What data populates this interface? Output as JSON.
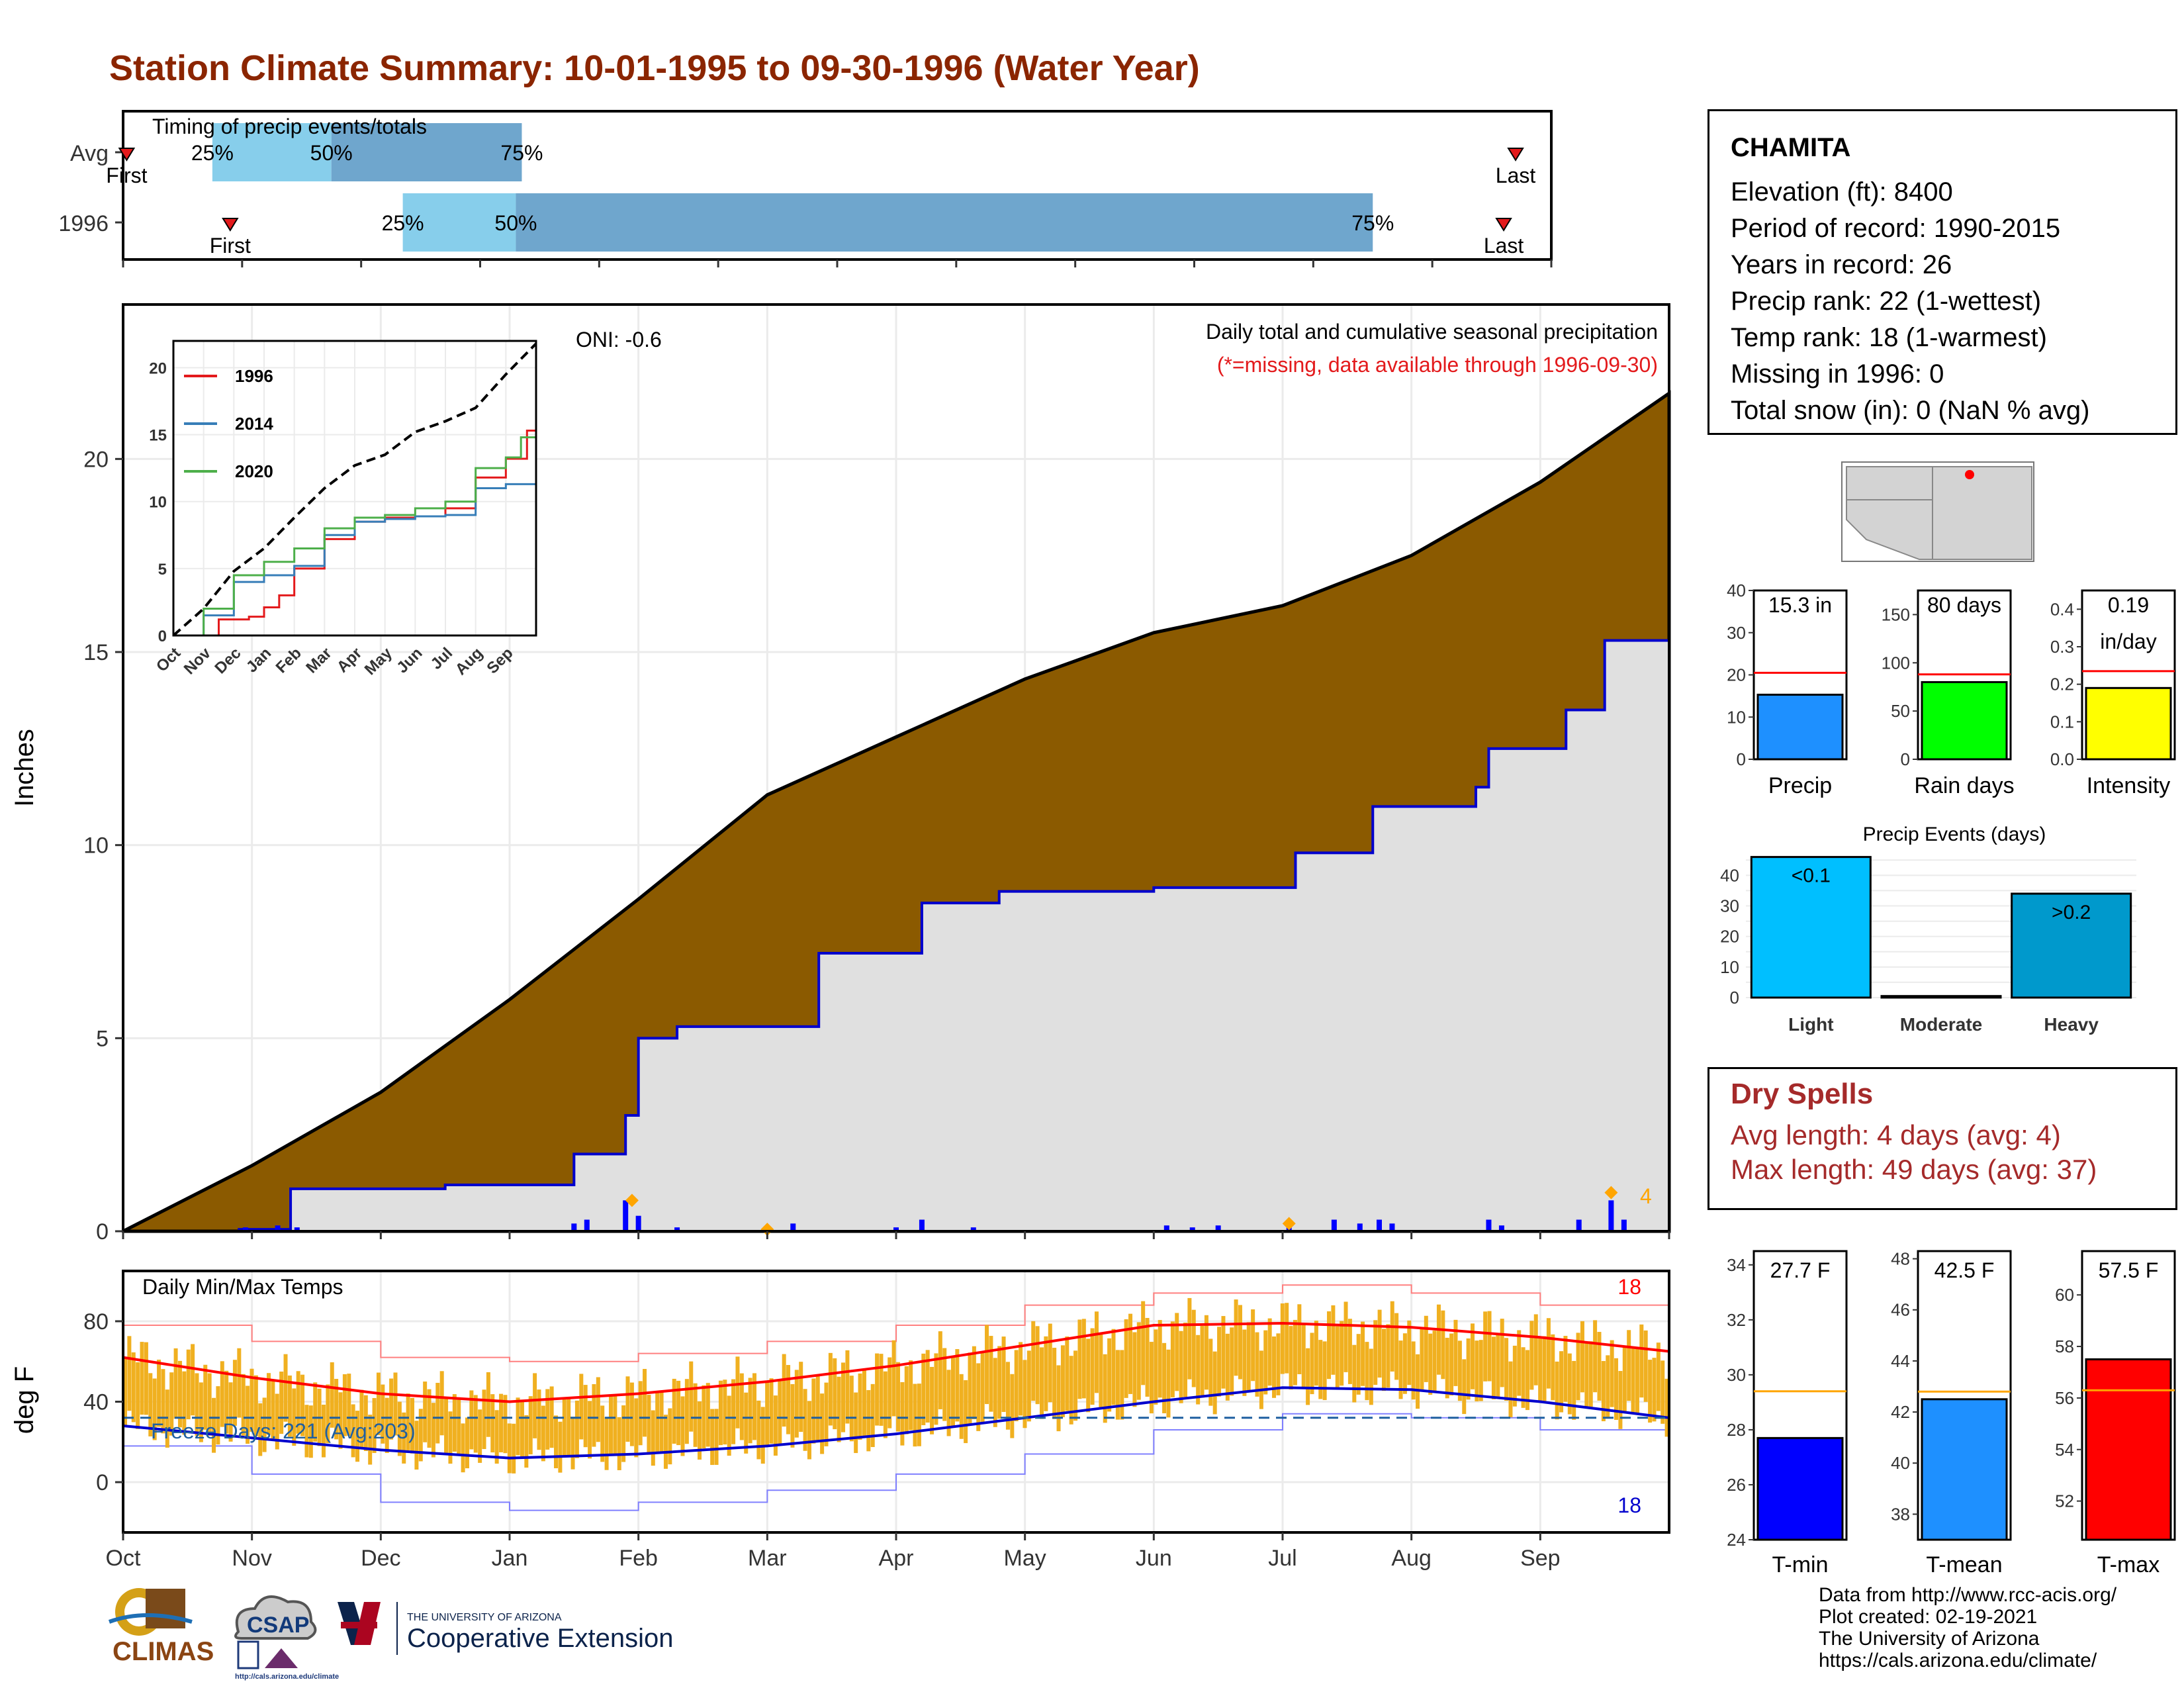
{
  "title": "Station Climate Summary: 10-01-1995 to 09-30-1996 (Water Year)",
  "station": {
    "name": "CHAMITA",
    "lines": [
      "Elevation (ft): 8400",
      "Period of record: 1990-2015",
      "Years in record: 26",
      "Precip rank: 22 (1-wettest)",
      "Temp rank: 18 (1-warmest)",
      "Missing in 1996: 0",
      "Total snow (in): 0 (NaN % avg)"
    ]
  },
  "timing": {
    "title": "Timing of precip events/totals",
    "rows": [
      {
        "label": "Avg",
        "first_label": "First",
        "last_label": "Last",
        "first": 0.03,
        "p25": 0.75,
        "p50": 1.75,
        "p75": 3.35,
        "last": 11.7
      },
      {
        "label": "1996",
        "first_label": "First",
        "last_label": "Last",
        "first": 0.9,
        "p25": 2.35,
        "p50": 3.3,
        "p75": 10.5,
        "last": 11.6
      }
    ],
    "pct_labels": [
      "25%",
      "50%",
      "75%"
    ],
    "colors": {
      "light": "#87ceeb",
      "dark": "#6fa6cd",
      "marker": "#e31a1c"
    }
  },
  "months": [
    "Oct",
    "Nov",
    "Dec",
    "Jan",
    "Feb",
    "Mar",
    "Apr",
    "May",
    "Jun",
    "Jul",
    "Aug",
    "Sep"
  ],
  "precip": {
    "ylabel": "Inches",
    "yticks": [
      0,
      5,
      10,
      15,
      20
    ],
    "annotation_title": "Daily total and cumulative seasonal precipitation",
    "annotation_missing": "(*=missing, data available through 1996-09-30)",
    "oni": "ONI: -0.6",
    "extreme_count": "4",
    "colors": {
      "avg_fill": "#8b5a00",
      "obs_fill": "#e0e0e0",
      "obs_line": "#0000cd",
      "bars": "#0000ff",
      "extreme": "#ffa500",
      "missing_note": "#e31a1c"
    },
    "avg_cumulative": {
      "month": [
        0,
        1,
        2,
        3,
        4,
        5,
        6,
        7,
        8,
        9,
        10,
        11,
        12
      ],
      "inches": [
        0,
        1.7,
        3.6,
        6.0,
        8.6,
        11.3,
        12.8,
        14.3,
        15.5,
        16.2,
        17.5,
        19.4,
        21.7
      ]
    },
    "obs_cumulative": {
      "month": [
        0,
        0.9,
        1.3,
        2.5,
        3.5,
        3.9,
        4.0,
        4.3,
        5.4,
        6.2,
        6.8,
        8.0,
        9.0,
        9.1,
        9.7,
        10.5,
        10.6,
        11.2,
        11.5,
        12.0
      ],
      "inches": [
        0,
        0.05,
        1.1,
        1.2,
        2.0,
        3.0,
        5.0,
        5.3,
        7.2,
        8.5,
        8.8,
        8.9,
        8.9,
        9.8,
        11.0,
        11.5,
        12.5,
        13.5,
        15.3,
        15.3
      ]
    },
    "daily_bars": {
      "month": [
        0.95,
        1.2,
        1.35,
        3.5,
        3.6,
        3.9,
        4.0,
        4.3,
        5.2,
        6.0,
        6.2,
        6.6,
        8.1,
        8.3,
        8.5,
        9.05,
        9.4,
        9.6,
        9.75,
        9.85,
        10.6,
        10.7,
        11.3,
        11.55,
        11.65
      ],
      "inches": [
        0.1,
        0.15,
        0.1,
        0.2,
        0.3,
        0.8,
        0.4,
        0.1,
        0.2,
        0.1,
        0.3,
        0.1,
        0.15,
        0.1,
        0.15,
        0.2,
        0.3,
        0.2,
        0.3,
        0.2,
        0.3,
        0.15,
        0.3,
        0.8,
        0.3
      ]
    },
    "extreme_points": {
      "month": [
        3.95,
        5.0,
        9.05,
        11.55
      ],
      "inches": [
        0.8,
        0.05,
        0.2,
        1.0
      ]
    }
  },
  "inset": {
    "yticks": [
      0,
      5,
      10,
      15,
      20
    ],
    "xticks": [
      "Oct",
      "Nov",
      "Dec",
      "Jan",
      "Feb",
      "Mar",
      "Apr",
      "May",
      "Jun",
      "Jul",
      "Aug",
      "Sep"
    ],
    "legend": [
      {
        "name": "1996",
        "color": "#e31a1c"
      },
      {
        "name": "2014",
        "color": "#377eb8"
      },
      {
        "name": "2020",
        "color": "#4daf4a"
      }
    ],
    "series": [
      {
        "name": "1996",
        "color": "#e31a1c",
        "month": [
          0,
          1.5,
          2.5,
          3.0,
          3.5,
          4.0,
          5.0,
          6.0,
          7.0,
          8.0,
          9.0,
          10.0,
          11.0,
          11.7,
          12.0
        ],
        "inches": [
          0,
          1.2,
          1.4,
          2.1,
          3.0,
          5.0,
          7.2,
          8.5,
          8.8,
          8.9,
          9.5,
          11.8,
          13.2,
          15.3,
          15.3
        ]
      },
      {
        "name": "2014",
        "color": "#377eb8",
        "month": [
          0,
          1.0,
          2.0,
          3.0,
          4.0,
          5.0,
          6.0,
          7.0,
          8.0,
          9.0,
          10.0,
          11.0,
          12.0
        ],
        "inches": [
          0,
          1.5,
          4.0,
          4.5,
          5.2,
          7.5,
          8.5,
          8.7,
          8.9,
          9.0,
          11.0,
          11.3,
          11.4
        ]
      },
      {
        "name": "2020",
        "color": "#4daf4a",
        "month": [
          0,
          1.0,
          2.0,
          3.0,
          4.0,
          5.0,
          6.0,
          7.0,
          8.0,
          9.0,
          10.0,
          11.0,
          11.5,
          12.0
        ],
        "inches": [
          0,
          2.0,
          4.5,
          5.5,
          6.5,
          8.0,
          8.8,
          9.0,
          9.5,
          10.0,
          12.5,
          13.3,
          14.8,
          14.8
        ]
      },
      {
        "name": "avg",
        "color": "#000000",
        "month": [
          0,
          1,
          2,
          3,
          4,
          5,
          6,
          7,
          8,
          9,
          10,
          11,
          12
        ],
        "inches": [
          0,
          2.0,
          4.8,
          6.5,
          8.8,
          11.0,
          12.7,
          13.5,
          15.2,
          16.0,
          17.0,
          19.5,
          21.8
        ]
      }
    ]
  },
  "minibars": [
    {
      "title": "Precip",
      "value_label": "15.3 in",
      "value": 15.3,
      "avg": 20.5,
      "ymax": 40,
      "yticks": [
        0,
        10,
        20,
        30,
        40
      ],
      "tick_labels": [
        "0",
        "10",
        "20",
        "30",
        "40"
      ],
      "color": "#1e90ff"
    },
    {
      "title": "Rain days",
      "value_label": "80 days",
      "value": 80,
      "avg": 88,
      "ymax": 175,
      "yticks": [
        0,
        50,
        100,
        150
      ],
      "tick_labels": [
        "0",
        "50",
        "100",
        "150"
      ],
      "color": "#00ff00"
    },
    {
      "title": "Intensity",
      "value_label": "0.19",
      "value_label2": "in/day",
      "value": 0.19,
      "avg": 0.235,
      "ymax": 0.45,
      "yticks": [
        0.0,
        0.1,
        0.2,
        0.3,
        0.4
      ],
      "tick_labels": [
        "0.0",
        "0.1",
        "0.2",
        "0.3",
        "0.4"
      ],
      "color": "#ffff00"
    }
  ],
  "events": {
    "title": "Precip Events (days)",
    "categories": [
      "Light",
      "Moderate",
      "Heavy"
    ],
    "values": [
      46,
      0.5,
      34
    ],
    "labels": [
      "<0.1",
      "",
      ">0.2"
    ],
    "ymax": 47,
    "yticks": [
      0,
      10,
      20,
      30,
      40
    ],
    "colors": [
      "#00bfff",
      "#0a5f8a",
      "#0099cc"
    ]
  },
  "dry_spells": {
    "title": "Dry Spells",
    "avg_line": "Avg length: 4 days (avg: 4)",
    "max_line": "Max length: 49 days (avg: 37)"
  },
  "temps": {
    "ylabel": "deg F",
    "title": "Daily Min/Max Temps",
    "freeze": "Freeze Days: 221 (Avg:203)",
    "freeze_level": 32,
    "count_high": "18",
    "count_low": "18",
    "yticks": [
      0,
      40,
      80
    ],
    "ylim": [
      -25,
      105
    ],
    "colors": {
      "range": "#f0b020",
      "avg_max": "#ff0000",
      "avg_min": "#0000cd",
      "rec_max": "#ff8080",
      "rec_min": "#8080ff",
      "freeze": "#1f5fa0"
    },
    "avg_max": {
      "month": [
        0,
        1,
        2,
        3,
        4,
        5,
        6,
        7,
        8,
        9,
        10,
        11,
        12
      ],
      "degF": [
        62,
        52,
        44,
        40,
        44,
        50,
        58,
        68,
        78,
        79,
        77,
        72,
        65
      ]
    },
    "avg_min": {
      "month": [
        0,
        1,
        2,
        3,
        4,
        5,
        6,
        7,
        8,
        9,
        10,
        11,
        12
      ],
      "degF": [
        28,
        22,
        16,
        12,
        14,
        18,
        24,
        32,
        40,
        47,
        46,
        40,
        32
      ]
    },
    "rec_max": {
      "month": [
        0,
        1,
        2,
        3,
        4,
        5,
        6,
        7,
        8,
        9,
        10,
        11,
        12
      ],
      "degF": [
        78,
        70,
        62,
        60,
        64,
        70,
        78,
        88,
        94,
        98,
        94,
        88,
        80
      ]
    },
    "rec_min": {
      "month": [
        0,
        1,
        2,
        3,
        4,
        5,
        6,
        7,
        8,
        9,
        10,
        11,
        12
      ],
      "degF": [
        18,
        4,
        -10,
        -14,
        -10,
        -4,
        4,
        14,
        26,
        34,
        32,
        26,
        18
      ]
    }
  },
  "temp_bars": [
    {
      "title": "T-min",
      "value_label": "27.7 F",
      "value": 27.7,
      "avg": 29.4,
      "ymin": 24,
      "ymax": 34.5,
      "yticks": [
        24,
        26,
        28,
        30,
        32,
        34
      ],
      "color": "#0000ff"
    },
    {
      "title": "T-mean",
      "value_label": "42.5 F",
      "value": 42.5,
      "avg": 42.8,
      "ymin": 37,
      "ymax": 48.3,
      "yticks": [
        38,
        40,
        42,
        44,
        46,
        48
      ],
      "color": "#1e90ff"
    },
    {
      "title": "T-max",
      "value_label": "57.5 F",
      "value": 57.5,
      "avg": 56.3,
      "ymin": 50.5,
      "ymax": 61.7,
      "yticks": [
        52,
        54,
        56,
        58,
        60
      ],
      "color": "#ff0000"
    }
  ],
  "credits": {
    "line1": "Data from http://www.rcc-acis.org/",
    "line2": "Plot created: 02-19-2021",
    "line3": "The University of Arizona",
    "line4": "https://cals.arizona.edu/climate/"
  },
  "logos": {
    "climas": "CLIMAS",
    "csap": "CSAP",
    "csap_url": "http://cals.arizona.edu/climate",
    "ua_small": "THE UNIVERSITY OF ARIZONA",
    "ua_big": "Cooperative Extension"
  }
}
